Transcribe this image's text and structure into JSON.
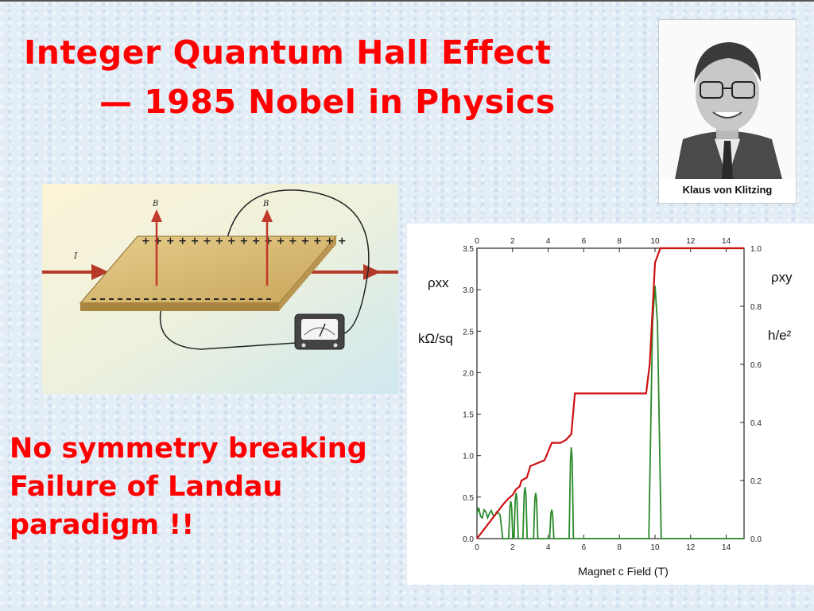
{
  "slide": {
    "title_line1": "Integer Quantum Hall Effect",
    "title_line2": "— 1985 Nobel in Physics",
    "body_lines": [
      "No symmetry breaking",
      "Failure of Landau",
      "paradigm !!"
    ],
    "accent_color": "#ff0000"
  },
  "portrait": {
    "caption": "Klaus von Klitzing"
  },
  "hall_diagram": {
    "b_label": "B",
    "i_label": "I"
  },
  "chart_data": {
    "type": "line",
    "xlabel": "Magnet c Field  (T)",
    "ylabel_left_line1": "ρxx",
    "ylabel_left_line2": "kΩ/sq",
    "ylabel_right_line1": "ρxy",
    "ylabel_right_line2": "h/e²",
    "xlim": [
      0,
      15
    ],
    "ylim_left": [
      0,
      3.5
    ],
    "ylim_right": [
      0,
      1.0
    ],
    "x_ticks": [
      "0",
      "2",
      "4",
      "6",
      "8",
      "10",
      "12",
      "14"
    ],
    "x_tick_values": [
      0,
      2,
      4,
      6,
      8,
      10,
      12,
      14
    ],
    "y_left_ticks": [
      "0.0",
      "0.5",
      "1.0",
      "1.5",
      "2.0",
      "2.5",
      "3.0",
      "3.5"
    ],
    "y_left_values": [
      0,
      0.5,
      1.0,
      1.5,
      2.0,
      2.5,
      3.0,
      3.5
    ],
    "y_right_ticks": [
      "0.0",
      "0.2",
      "0.4",
      "0.6",
      "0.8",
      "1.0"
    ],
    "y_right_values": [
      0,
      0.2,
      0.4,
      0.6,
      0.8,
      1.0
    ],
    "series": [
      {
        "color": "#cc1111",
        "axis": "right",
        "x": [
          0,
          1.5,
          1.8,
          2.0,
          2.2,
          2.4,
          2.5,
          2.8,
          3.0,
          3.4,
          3.8,
          4.0,
          4.2,
          4.7,
          5.0,
          5.3,
          5.5,
          9.2,
          9.5,
          9.7,
          10.0,
          10.3,
          15
        ],
        "y": [
          0.0,
          0.12,
          0.14,
          0.15,
          0.17,
          0.18,
          0.2,
          0.21,
          0.25,
          0.26,
          0.27,
          0.3,
          0.33,
          0.33,
          0.34,
          0.36,
          0.5,
          0.5,
          0.5,
          0.6,
          0.95,
          1.0,
          1.0
        ]
      },
      {
        "color": "#2a8a2a",
        "axis": "left",
        "peaks": [
          {
            "x": 1.5,
            "y": 0.3
          },
          {
            "x": 1.9,
            "y": 0.45
          },
          {
            "x": 2.2,
            "y": 0.55
          },
          {
            "x": 2.7,
            "y": 0.62
          },
          {
            "x": 3.3,
            "y": 0.55
          },
          {
            "x": 4.2,
            "y": 0.35
          },
          {
            "x": 5.3,
            "y": 1.1
          },
          {
            "x": 10.0,
            "y": 3.05
          }
        ]
      }
    ]
  }
}
